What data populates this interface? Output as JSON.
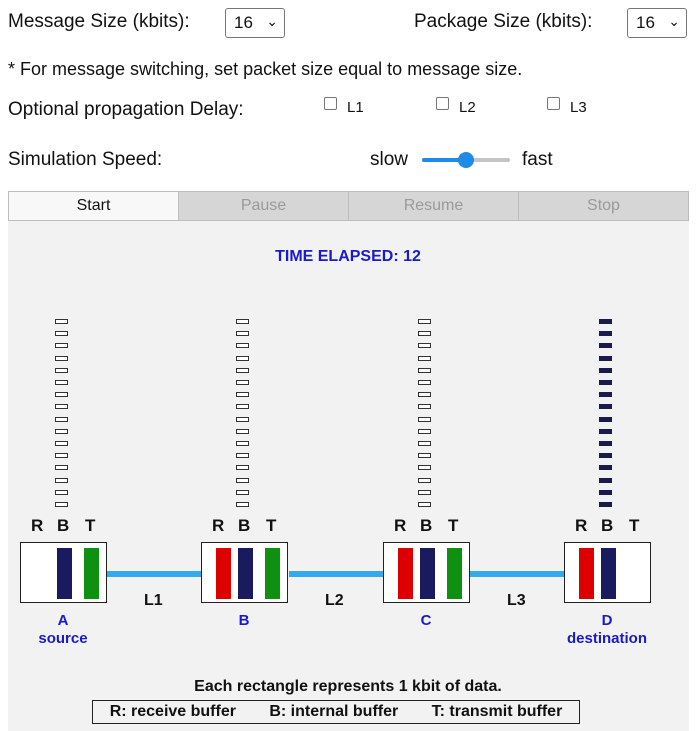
{
  "controls": {
    "message_size_label": "Message Size (kbits):",
    "message_size_value": "16",
    "package_size_label": "Package Size (kbits):",
    "package_size_value": "16",
    "note": "* For message switching, set packet size equal to message size.",
    "propagation_label": "Optional propagation Delay:",
    "propagation_checkboxes": [
      {
        "label": "L1",
        "checked": false
      },
      {
        "label": "L2",
        "checked": false
      },
      {
        "label": "L3",
        "checked": false
      }
    ],
    "speed_label": "Simulation Speed:",
    "speed_slow": "slow",
    "speed_fast": "fast",
    "speed_value_fraction": 0.5
  },
  "buttons": [
    {
      "label": "Start",
      "enabled": true
    },
    {
      "label": "Pause",
      "enabled": false
    },
    {
      "label": "Resume",
      "enabled": false
    },
    {
      "label": "Stop",
      "enabled": false
    }
  ],
  "simulation": {
    "time_elapsed_label": "TIME ELAPSED: 12",
    "buffer_labels": [
      "R",
      "B",
      "T"
    ],
    "queue_capacity": 16,
    "nodes": [
      {
        "letter": "A",
        "role": "source",
        "queue_filled": 0,
        "bars": {
          "R": "",
          "B": "#1a1a5e",
          "T": "#109010"
        }
      },
      {
        "letter": "B",
        "role": "",
        "queue_filled": 0,
        "bars": {
          "R": "#dd0000",
          "B": "#1a1a5e",
          "T": "#109010"
        }
      },
      {
        "letter": "C",
        "role": "",
        "queue_filled": 0,
        "bars": {
          "R": "#dd0000",
          "B": "#1a1a5e",
          "T": "#109010"
        }
      },
      {
        "letter": "D",
        "role": "destination",
        "queue_filled": 16,
        "bars": {
          "R": "#dd0000",
          "B": "#1a1a5e",
          "T": ""
        }
      }
    ],
    "links": [
      "L1",
      "L2",
      "L3"
    ],
    "link_color": "#33aaee",
    "caption": "Each rectangle represents 1 kbit of data.",
    "legend": [
      "R: receive buffer",
      "B: internal buffer",
      "T: transmit buffer"
    ]
  }
}
